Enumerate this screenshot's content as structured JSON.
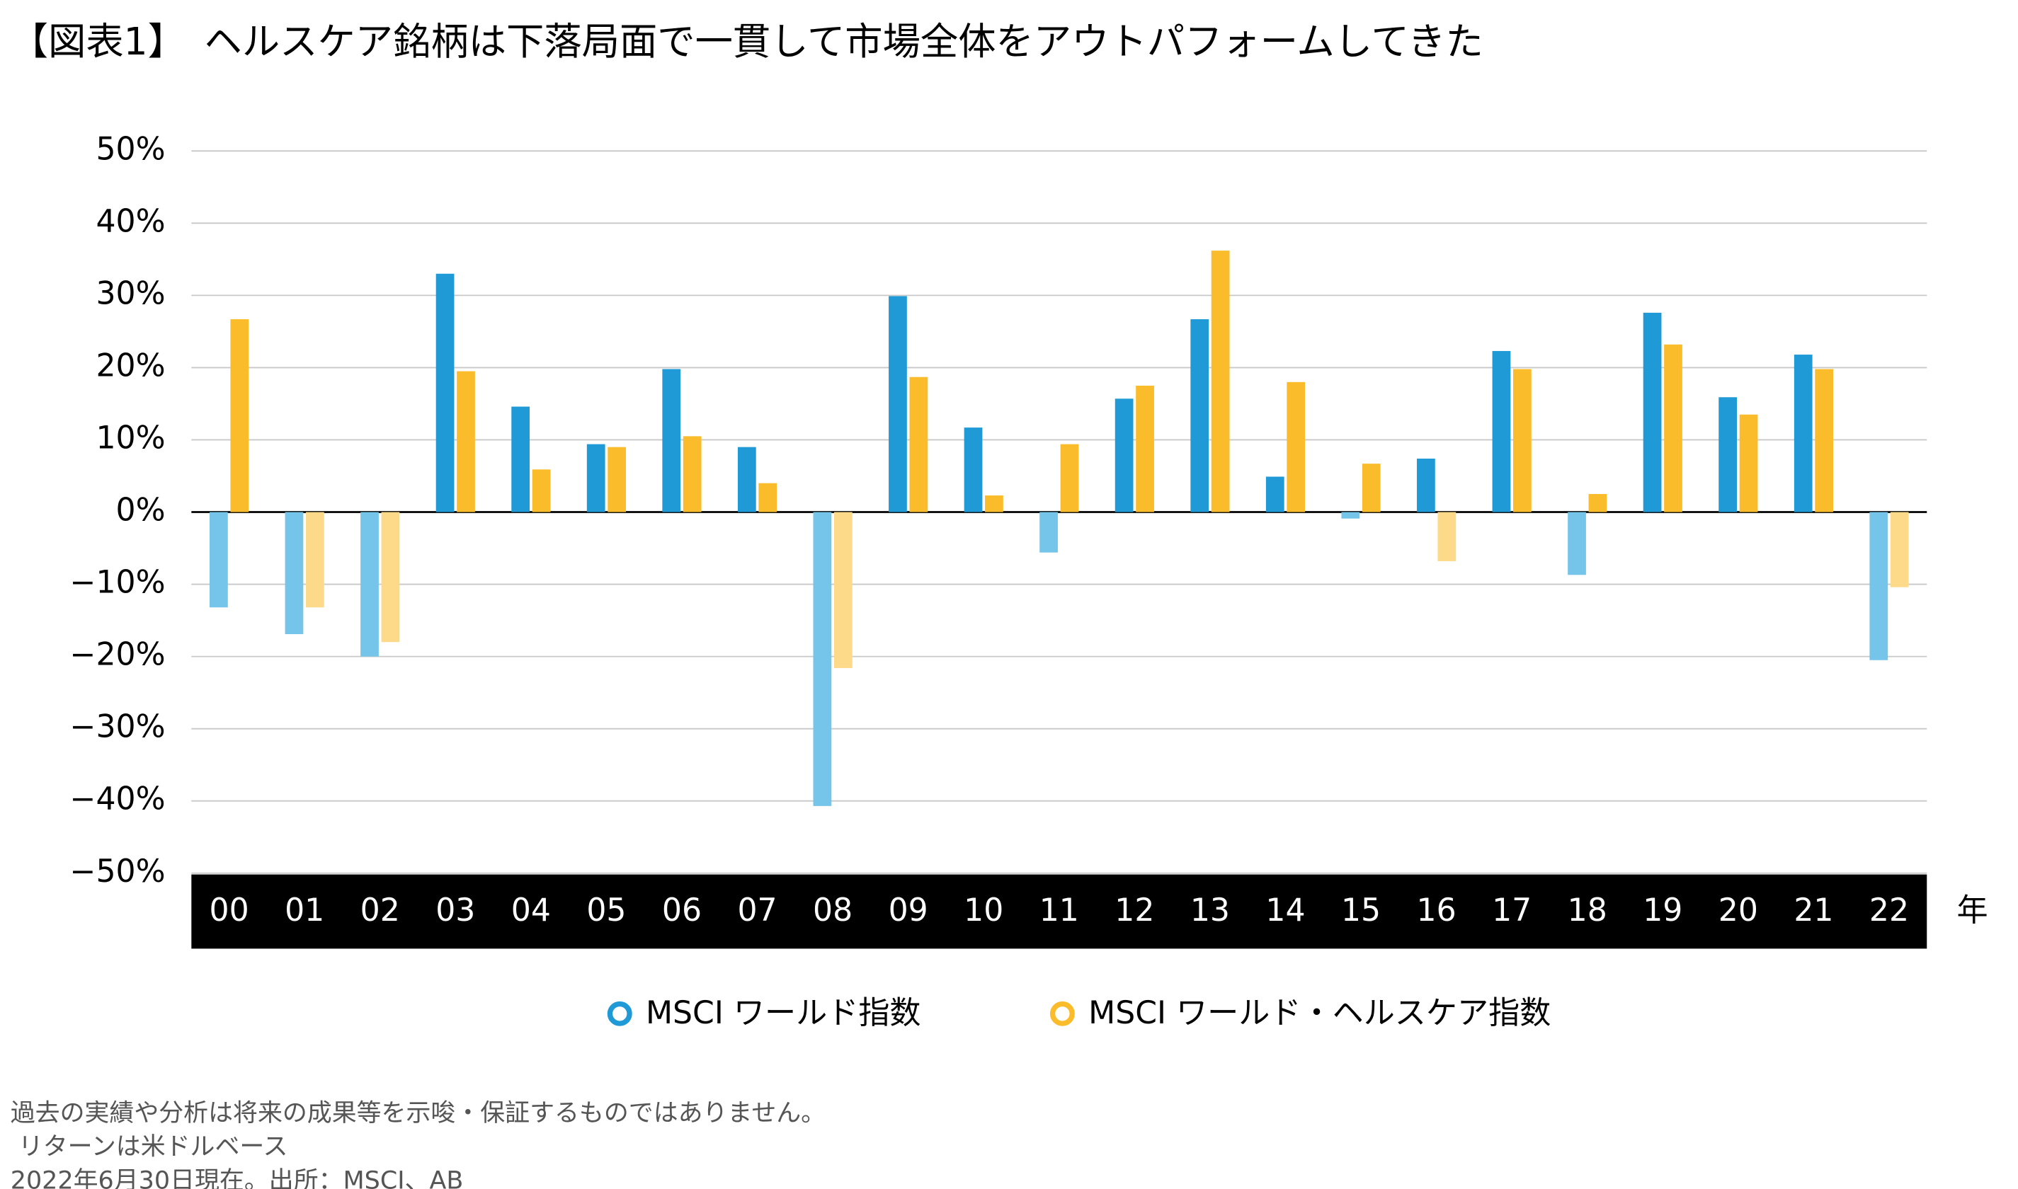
{
  "chart_data": {
    "type": "bar",
    "title": "【図表1】　ヘルスケア銘柄は下落局面で一貫して市場全体をアウトパフォームしてきた",
    "x_unit": "年",
    "categories": [
      "00",
      "01",
      "02",
      "03",
      "04",
      "05",
      "06",
      "07",
      "08",
      "09",
      "10",
      "11",
      "12",
      "13",
      "14",
      "15",
      "16",
      "17",
      "18",
      "19",
      "20",
      "21",
      "22"
    ],
    "series": [
      {
        "name": "MSCI ワールド指数",
        "color": "#1f9ad6",
        "negative_color": "#75c4ea",
        "values": [
          -13.2,
          -16.9,
          -20.0,
          33.0,
          14.6,
          9.4,
          19.8,
          9.0,
          -40.7,
          29.9,
          11.7,
          -5.6,
          15.7,
          26.7,
          4.9,
          -0.9,
          7.4,
          22.3,
          -8.7,
          27.6,
          15.9,
          21.8,
          -20.5
        ]
      },
      {
        "name": "MSCI ワールド・ヘルスケア指数",
        "color": "#fbbc2c",
        "negative_color": "#fdd98a",
        "values": [
          26.7,
          -13.2,
          -18.0,
          19.5,
          5.9,
          9.0,
          10.5,
          4.0,
          -21.6,
          18.7,
          2.3,
          9.4,
          17.5,
          36.2,
          18.0,
          6.7,
          -6.8,
          19.8,
          2.5,
          23.2,
          13.5,
          19.8,
          -10.4
        ]
      }
    ],
    "ylim": [
      -50,
      50
    ],
    "yticks": [
      {
        "value": -50,
        "label": "−50%"
      },
      {
        "value": -40,
        "label": "−40%"
      },
      {
        "value": -30,
        "label": "−30%"
      },
      {
        "value": -20,
        "label": "−20%"
      },
      {
        "value": -10,
        "label": "−10%"
      },
      {
        "value": 0,
        "label": "0%"
      },
      {
        "value": 10,
        "label": "10%"
      },
      {
        "value": 20,
        "label": "20%"
      },
      {
        "value": 30,
        "label": "30%"
      },
      {
        "value": 40,
        "label": "40%"
      },
      {
        "value": 50,
        "label": "50%"
      }
    ],
    "grid": true,
    "notes": [
      "過去の実績や分析は将来の成果等を示唆・保証するものではありません。",
      " リターンは米ドルベース",
      "2022年6月30日現在。出所：MSCI、AB"
    ]
  }
}
